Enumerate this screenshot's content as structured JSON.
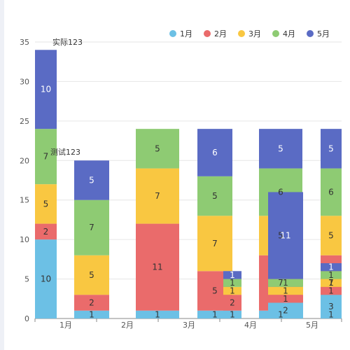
{
  "chart_data": {
    "type": "bar",
    "stacked": true,
    "ylim": [
      0,
      35
    ],
    "y_ticks": [
      0,
      5,
      10,
      15,
      20,
      25,
      30,
      35
    ],
    "x_tick_labels": [
      "1月",
      "2月",
      "3月",
      "4月",
      "5月"
    ],
    "legend": {
      "position": "top-right",
      "items": [
        {
          "name": "1月",
          "color": "#6cc0e5"
        },
        {
          "name": "2月",
          "color": "#ea6b6b"
        },
        {
          "name": "3月",
          "color": "#f9c741"
        },
        {
          "name": "4月",
          "color": "#8ecb73"
        },
        {
          "name": "5月",
          "color": "#5a6bc4"
        }
      ]
    },
    "bars": [
      {
        "segments": [
          10,
          2,
          5,
          7,
          10
        ]
      },
      {
        "segments": [
          1,
          2,
          5,
          7,
          5
        ]
      },
      {
        "segments": [
          1,
          11,
          7,
          5,
          0
        ]
      },
      {
        "segments": [
          1,
          5,
          7,
          5,
          6
        ]
      },
      {
        "segments": [
          1,
          7,
          5,
          6,
          5
        ]
      },
      {
        "segments": [
          1,
          7,
          5,
          6,
          5
        ]
      },
      {
        "segments": [
          1,
          2,
          1,
          1,
          1
        ]
      },
      {
        "segments": [
          2,
          1,
          1,
          1,
          11
        ]
      },
      {
        "segments": [
          3,
          1,
          1,
          1,
          1
        ]
      }
    ],
    "annotations": [
      "实际123",
      "测试123"
    ]
  }
}
